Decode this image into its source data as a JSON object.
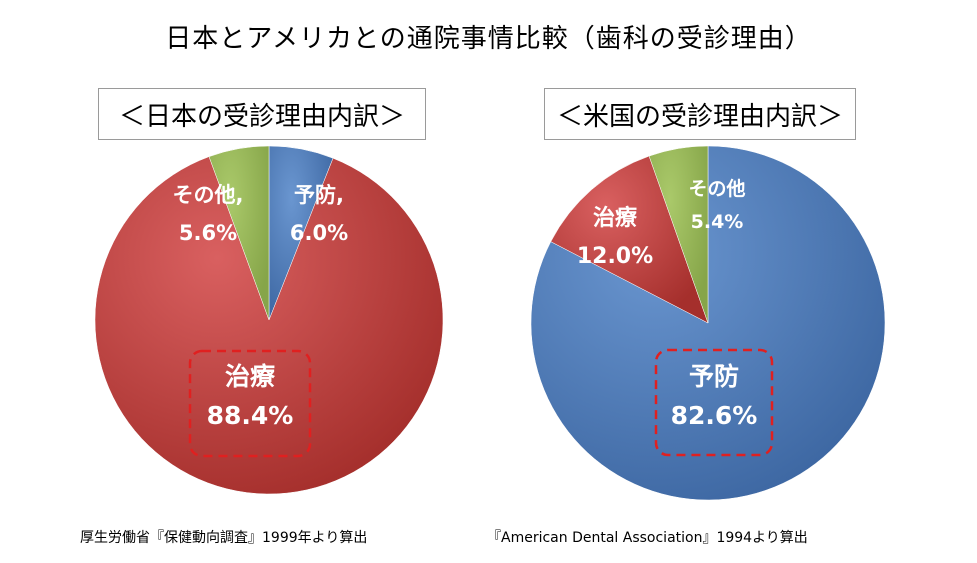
{
  "title": "日本とアメリカとの通院事情比較（歯科の受診理由）",
  "chart_data": [
    {
      "type": "pie",
      "title": "＜日本の受診理由内訳＞",
      "slices": [
        {
          "label": "予防",
          "value_label": "6.0%",
          "value": 6.0,
          "color": "#4472c4"
        },
        {
          "label": "治療",
          "value_label": "88.4%",
          "value": 88.4,
          "color": "#c0504d"
        },
        {
          "label": "その他",
          "value_label": "5.6%",
          "value": 5.6,
          "color": "#9bbb59"
        }
      ],
      "highlighted": "治療",
      "source": "厚生労働省『保健動向調査』1999年より算出"
    },
    {
      "type": "pie",
      "title": "＜米国の受診理由内訳＞",
      "slices": [
        {
          "label": "予防",
          "value_label": "82.6%",
          "value": 82.6,
          "color": "#4f81bd"
        },
        {
          "label": "治療",
          "value_label": "12.0%",
          "value": 12.0,
          "color": "#c0504d"
        },
        {
          "label": "その他",
          "value_label": "5.4%",
          "value": 5.4,
          "color": "#9bbb59"
        }
      ],
      "highlighted": "予防",
      "source": "『American Dental Association』1994より算出"
    }
  ]
}
